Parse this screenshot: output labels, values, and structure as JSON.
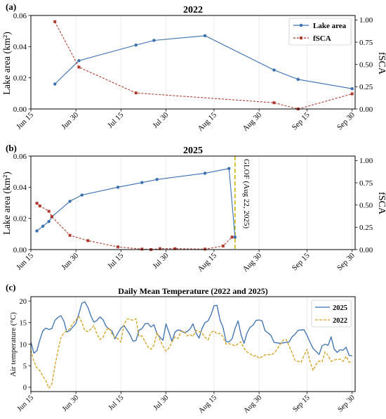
{
  "chart_data": [
    {
      "id": "a",
      "panel_label": "(a)",
      "type": "line",
      "title": "2022",
      "ylabel": "Lake area (km²)",
      "y2label": "fSCA",
      "ylim": [
        0,
        0.06
      ],
      "y2lim": [
        0,
        1.05
      ],
      "yticks": [
        "0.00",
        "0.02",
        "0.04",
        "0.06"
      ],
      "y2ticks": [
        "0.00",
        "0.25",
        "0.50",
        "0.75",
        "1.00"
      ],
      "xlim": [
        0,
        108
      ],
      "xticks": [
        {
          "label": "Jun 15",
          "day": 0
        },
        {
          "label": "Jun 30",
          "day": 15
        },
        {
          "label": "Jul 15",
          "day": 30
        },
        {
          "label": "Jul 30",
          "day": 45
        },
        {
          "label": "Aug 15",
          "day": 61
        },
        {
          "label": "Aug 30",
          "day": 76
        },
        {
          "label": "Sep 15",
          "day": 92
        },
        {
          "label": "Sep 30",
          "day": 107
        }
      ],
      "grid": "x",
      "legend_position": "top-right",
      "series": [
        {
          "name": "Lake area",
          "axis": "left",
          "color": "#3a6fb0",
          "marker": "circle",
          "x": [
            8,
            16,
            35,
            41,
            58,
            81,
            89,
            107
          ],
          "values": [
            0.016,
            0.031,
            0.041,
            0.044,
            0.047,
            0.025,
            0.019,
            0.013
          ]
        },
        {
          "name": "fSCA",
          "axis": "right",
          "color": "#b03a2e",
          "marker": "square",
          "dashed": true,
          "x": [
            8,
            16,
            35,
            81,
            89,
            107
          ],
          "values": [
            0.98,
            0.47,
            0.18,
            0.07,
            0.0,
            0.17
          ]
        }
      ]
    },
    {
      "id": "b",
      "panel_label": "(b)",
      "type": "line",
      "title": "2025",
      "ylabel": "Lake area (km²)",
      "y2label": "fSCA",
      "ylim": [
        0,
        0.06
      ],
      "y2lim": [
        0,
        1.05
      ],
      "yticks": [
        "0.00",
        "0.02",
        "0.04",
        "0.06"
      ],
      "y2ticks": [
        "0.00",
        "0.25",
        "0.50",
        "0.75",
        "1.00"
      ],
      "xlim": [
        0,
        108
      ],
      "xticks": [
        {
          "label": "Jun 15",
          "day": 0
        },
        {
          "label": "Jun 30",
          "day": 15
        },
        {
          "label": "Jul 15",
          "day": 30
        },
        {
          "label": "Jul 30",
          "day": 45
        },
        {
          "label": "Aug 15",
          "day": 61
        },
        {
          "label": "Aug 30",
          "day": 76
        },
        {
          "label": "Sep 15",
          "day": 92
        },
        {
          "label": "Sep 30",
          "day": 107
        }
      ],
      "grid": "x",
      "annotation": {
        "label": "GLOF (Aug 22, 2025)",
        "day": 68,
        "color": "#c8b400"
      },
      "series": [
        {
          "name": "Lake area",
          "axis": "left",
          "color": "#3a6fb0",
          "marker": "circle",
          "x": [
            2,
            4,
            6,
            7,
            13,
            17,
            29,
            37,
            42,
            58,
            66,
            68
          ],
          "values": [
            0.012,
            0.015,
            0.018,
            0.021,
            0.031,
            0.035,
            0.04,
            0.043,
            0.045,
            0.049,
            0.052,
            0.008
          ]
        },
        {
          "name": "fSCA",
          "axis": "right",
          "color": "#b03a2e",
          "marker": "square",
          "dashed": true,
          "x": [
            2,
            3,
            6,
            7,
            13,
            19,
            29,
            37,
            40,
            43,
            48,
            58,
            64,
            67
          ],
          "values": [
            0.52,
            0.49,
            0.43,
            0.37,
            0.16,
            0.1,
            0.03,
            0.005,
            0.0,
            0.01,
            0.01,
            0.005,
            0.04,
            0.14
          ]
        }
      ]
    },
    {
      "id": "c",
      "panel_label": "(c)",
      "type": "line",
      "title": "Daily Mean Temperature (2022 and 2025)",
      "ylabel": "Air temperature (°C)",
      "ylim": [
        -1,
        21
      ],
      "yticks": [
        "0",
        "5",
        "10",
        "15",
        "20"
      ],
      "xlim": [
        0,
        108
      ],
      "xticks": [
        {
          "label": "Jun 15",
          "day": 0
        },
        {
          "label": "Jun 30",
          "day": 15
        },
        {
          "label": "Jul 15",
          "day": 30
        },
        {
          "label": "Jul 30",
          "day": 45
        },
        {
          "label": "Aug 15",
          "day": 61
        },
        {
          "label": "Aug 30",
          "day": 76
        },
        {
          "label": "Sep 15",
          "day": 92
        },
        {
          "label": "Sep 30",
          "day": 107
        }
      ],
      "grid": "x",
      "legend_position": "top-right",
      "series": [
        {
          "name": "2025",
          "color": "#3a6fb0",
          "dashed": false,
          "values": [
            10.5,
            7.9,
            8.5,
            11.0,
            13.1,
            13.7,
            13.4,
            13.6,
            15.5,
            16.2,
            16.6,
            15.3,
            12.8,
            13.2,
            14.0,
            14.8,
            17.0,
            19.5,
            19.8,
            18.5,
            16.5,
            15.1,
            15.5,
            16.3,
            15.7,
            14.2,
            13.5,
            13.1,
            11.2,
            12.6,
            13.7,
            14.3,
            13.3,
            12.2,
            10.7,
            10.8,
            13.2,
            13.6,
            14.7,
            14.8,
            14.0,
            14.5,
            12.4,
            11.6,
            10.9,
            14.7,
            12.7,
            10.6,
            12.8,
            13.3,
            13.1,
            12.7,
            12.9,
            13.5,
            14.7,
            12.6,
            11.4,
            13.6,
            15.0,
            15.4,
            16.8,
            18.9,
            19.0,
            15.6,
            13.9,
            10.6,
            10.5,
            11.2,
            13.6,
            15.4,
            12.2,
            10.2,
            12.6,
            13.9,
            14.4,
            15.5,
            15.6,
            15.4,
            13.1,
            12.6,
            12.0,
            10.4,
            10.3,
            10.2,
            10.3,
            10.4,
            10.5,
            11.7,
            12.3,
            13.2,
            13.3,
            13.3,
            12.0,
            10.4,
            9.0,
            8.3,
            7.6,
            9.6,
            10.0,
            9.7,
            11.7,
            8.9,
            8.1,
            8.7,
            8.6,
            9.3,
            7.4,
            7.3
          ],
          "x": [
            0,
            1,
            2,
            3,
            4,
            5,
            6,
            7,
            8,
            9,
            10,
            11,
            12,
            13,
            14,
            15,
            16,
            17,
            18,
            19,
            20,
            21,
            22,
            23,
            24,
            25,
            26,
            27,
            28,
            29,
            30,
            31,
            32,
            33,
            34,
            35,
            36,
            37,
            38,
            39,
            40,
            41,
            42,
            43,
            44,
            45,
            46,
            47,
            48,
            49,
            50,
            51,
            52,
            53,
            54,
            55,
            56,
            57,
            58,
            59,
            60,
            61,
            62,
            63,
            64,
            65,
            66,
            67,
            68,
            69,
            70,
            71,
            72,
            73,
            74,
            75,
            76,
            77,
            78,
            79,
            80,
            81,
            82,
            83,
            84,
            85,
            86,
            87,
            88,
            89,
            90,
            91,
            92,
            93,
            94,
            95,
            96,
            97,
            98,
            99,
            100,
            101,
            102,
            103,
            104,
            105,
            106,
            107
          ]
        },
        {
          "name": "2022",
          "color": "#d4a01c",
          "dashed": true,
          "values": [
            8.6,
            6.0,
            4.5,
            3.8,
            2.6,
            1.5,
            -0.2,
            0.8,
            4.9,
            8.4,
            11.5,
            12.6,
            13.2,
            13.6,
            14.8,
            15.6,
            16.4,
            15.0,
            13.1,
            12.9,
            13.5,
            14.3,
            12.3,
            11.1,
            11.5,
            13.2,
            13.8,
            12.4,
            11.5,
            11.3,
            10.5,
            14.5,
            15.8,
            15.8,
            15.5,
            15.9,
            11.8,
            11.9,
            10.6,
            9.4,
            8.8,
            9.8,
            12.7,
            11.0,
            9.5,
            8.4,
            9.1,
            10.5,
            11.7,
            11.3,
            12.9,
            13.0,
            11.9,
            12.2,
            11.8,
            13.2,
            12.9,
            12.6,
            11.6,
            11.0,
            12.7,
            13.1,
            12.4,
            12.5,
            11.7,
            10.0,
            10.1,
            9.9,
            9.6,
            10.1,
            10.5,
            9.0,
            8.2,
            7.8,
            7.2,
            7.4,
            6.7,
            7.1,
            7.5,
            7.6,
            7.5,
            7.9,
            8.8,
            9.9,
            10.9,
            11.1,
            9.6,
            8.0,
            6.2,
            6.0,
            5.8,
            7.4,
            8.8,
            5.9,
            3.9,
            5.3,
            6.1,
            5.9,
            8.2,
            7.4,
            6.0,
            6.3,
            6.5,
            6.5,
            6.0,
            7.2,
            5.8,
            5.9
          ],
          "x": [
            0,
            1,
            2,
            3,
            4,
            5,
            6,
            7,
            8,
            9,
            10,
            11,
            12,
            13,
            14,
            15,
            16,
            17,
            18,
            19,
            20,
            21,
            22,
            23,
            24,
            25,
            26,
            27,
            28,
            29,
            30,
            31,
            32,
            33,
            34,
            35,
            36,
            37,
            38,
            39,
            40,
            41,
            42,
            43,
            44,
            45,
            46,
            47,
            48,
            49,
            50,
            51,
            52,
            53,
            54,
            55,
            56,
            57,
            58,
            59,
            60,
            61,
            62,
            63,
            64,
            65,
            66,
            67,
            68,
            69,
            70,
            71,
            72,
            73,
            74,
            75,
            76,
            77,
            78,
            79,
            80,
            81,
            82,
            83,
            84,
            85,
            86,
            87,
            88,
            89,
            90,
            91,
            92,
            93,
            94,
            95,
            96,
            97,
            98,
            99,
            100,
            101,
            102,
            103,
            104,
            105,
            106,
            107
          ]
        }
      ]
    }
  ]
}
